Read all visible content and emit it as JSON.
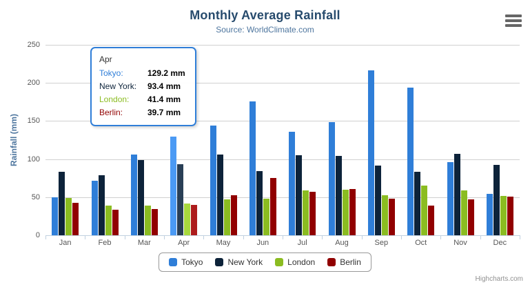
{
  "header": {
    "title": "Monthly Average Rainfall",
    "subtitle": "Source: WorldClimate.com"
  },
  "export_menu": {
    "icon": "hamburger-menu-icon"
  },
  "chart_data": {
    "type": "bar",
    "title": "Monthly Average Rainfall",
    "subtitle": "Source: WorldClimate.com",
    "categories": [
      "Jan",
      "Feb",
      "Mar",
      "Apr",
      "May",
      "Jun",
      "Jul",
      "Aug",
      "Sep",
      "Oct",
      "Nov",
      "Dec"
    ],
    "series": [
      {
        "name": "Tokyo",
        "color": "#2f7ed8",
        "values": [
          49.9,
          71.5,
          106.4,
          129.2,
          144.0,
          176.0,
          135.6,
          148.5,
          216.4,
          194.1,
          95.6,
          54.4
        ]
      },
      {
        "name": "New York",
        "color": "#0d233a",
        "values": [
          83.6,
          78.8,
          98.5,
          93.4,
          106.0,
          84.5,
          105.0,
          104.3,
          91.2,
          83.5,
          106.6,
          92.3
        ]
      },
      {
        "name": "London",
        "color": "#8bbc21",
        "values": [
          48.9,
          38.8,
          39.3,
          41.4,
          47.0,
          48.3,
          59.0,
          59.6,
          52.4,
          65.2,
          59.3,
          51.2
        ]
      },
      {
        "name": "Berlin",
        "color": "#910000",
        "values": [
          42.4,
          33.2,
          34.5,
          39.7,
          52.6,
          75.5,
          57.4,
          60.4,
          47.6,
          39.1,
          46.8,
          51.1
        ]
      }
    ],
    "xlabel": "",
    "ylabel": "Rainfall (mm)",
    "yticks": [
      0,
      50,
      100,
      150,
      200,
      250
    ],
    "ylim": [
      0,
      250
    ],
    "grid": true,
    "legend_position": "bottom"
  },
  "tooltip": {
    "header": "Apr",
    "rows": [
      {
        "label": "Tokyo:",
        "value": "129.2 mm",
        "color": "#2f7ed8"
      },
      {
        "label": "New York:",
        "value": "93.4 mm",
        "color": "#0d233a"
      },
      {
        "label": "London:",
        "value": "41.4 mm",
        "color": "#8bbc21"
      },
      {
        "label": "Berlin:",
        "value": "39.7 mm",
        "color": "#910000"
      }
    ]
  },
  "hovered_month": "Apr",
  "legend": {
    "items": [
      {
        "label": "Tokyo",
        "color": "#2f7ed8"
      },
      {
        "label": "New York",
        "color": "#0d233a"
      },
      {
        "label": "London",
        "color": "#8bbc21"
      },
      {
        "label": "Berlin",
        "color": "#910000"
      }
    ]
  },
  "credit": "Highcharts.com",
  "colors": {
    "title": "#274b6d",
    "subtitle": "#4d759e",
    "axis_labels": "#555555",
    "gridline": "#d0d0d0",
    "axis_line": "#c0d0e0",
    "tooltip_border": "#2f7ed8"
  }
}
